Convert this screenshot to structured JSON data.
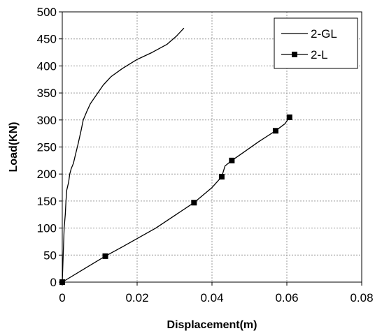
{
  "chart_data": {
    "type": "line",
    "xlabel": "Displacement(m)",
    "ylabel": "Load(KN)",
    "xlim": [
      0,
      0.08
    ],
    "ylim": [
      0,
      500
    ],
    "x_ticks": [
      "0",
      "0.02",
      "0.04",
      "0.06",
      "0.08"
    ],
    "y_ticks": [
      "0",
      "50",
      "100",
      "150",
      "200",
      "250",
      "300",
      "350",
      "400",
      "450",
      "500"
    ],
    "grid": true,
    "legend_position": "top-right",
    "series": [
      {
        "name": "2-GL",
        "marker": "none",
        "color": "#000000",
        "points": [
          [
            0,
            0
          ],
          [
            0.0003,
            60
          ],
          [
            0.0005,
            100
          ],
          [
            0.0008,
            125
          ],
          [
            0.001,
            150
          ],
          [
            0.0012,
            170
          ],
          [
            0.0017,
            185
          ],
          [
            0.002,
            200
          ],
          [
            0.0024,
            210
          ],
          [
            0.003,
            220
          ],
          [
            0.0035,
            235
          ],
          [
            0.0042,
            255
          ],
          [
            0.005,
            280
          ],
          [
            0.0056,
            300
          ],
          [
            0.0065,
            315
          ],
          [
            0.0075,
            330
          ],
          [
            0.0085,
            340
          ],
          [
            0.0095,
            350
          ],
          [
            0.011,
            365
          ],
          [
            0.013,
            380
          ],
          [
            0.016,
            395
          ],
          [
            0.02,
            412
          ],
          [
            0.024,
            425
          ],
          [
            0.028,
            440
          ],
          [
            0.0305,
            455
          ],
          [
            0.0325,
            470
          ]
        ]
      },
      {
        "name": "2-L",
        "marker": "square",
        "color": "#000000",
        "points": [
          [
            0,
            0
          ],
          [
            0.006,
            25
          ],
          [
            0.0115,
            48
          ],
          [
            0.016,
            65
          ],
          [
            0.025,
            100
          ],
          [
            0.0352,
            147
          ],
          [
            0.04,
            175
          ],
          [
            0.0426,
            195
          ],
          [
            0.0435,
            215
          ],
          [
            0.0453,
            225
          ],
          [
            0.048,
            238
          ],
          [
            0.0525,
            260
          ],
          [
            0.057,
            280
          ],
          [
            0.0595,
            293
          ],
          [
            0.0607,
            305
          ]
        ],
        "marker_points": [
          [
            0,
            0
          ],
          [
            0.0115,
            48
          ],
          [
            0.0352,
            147
          ],
          [
            0.0426,
            195
          ],
          [
            0.0453,
            225
          ],
          [
            0.057,
            280
          ],
          [
            0.0607,
            305
          ]
        ]
      }
    ]
  }
}
